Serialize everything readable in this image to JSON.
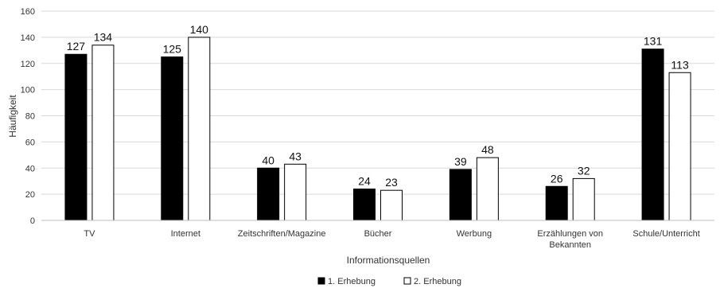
{
  "chart_data": {
    "type": "bar",
    "categories": [
      "TV",
      "Internet",
      "Zeitschriften/Magazine",
      "Bücher",
      "Werbung",
      "Erzählungen von Bekannten",
      "Schule/Unterricht"
    ],
    "category_lines": [
      [
        "TV"
      ],
      [
        "Internet"
      ],
      [
        "Zeitschriften/Magazine"
      ],
      [
        "Bücher"
      ],
      [
        "Werbung"
      ],
      [
        "Erzählungen von",
        "Bekannten"
      ],
      [
        "Schule/Unterricht"
      ]
    ],
    "series": [
      {
        "name": "1. Erhebung",
        "values": [
          127,
          125,
          40,
          24,
          39,
          26,
          131
        ],
        "color": "#000000"
      },
      {
        "name": "2. Erhebung",
        "values": [
          134,
          140,
          43,
          23,
          48,
          32,
          113
        ],
        "color": "#ffffff"
      }
    ],
    "xlabel": "Informationsquellen",
    "ylabel": "Häufigkeit",
    "ylim": [
      0,
      160
    ],
    "yticks": [
      0,
      20,
      40,
      60,
      80,
      100,
      120,
      140,
      160
    ],
    "grid": true,
    "legend": "bottom-center",
    "data_labels": true
  }
}
